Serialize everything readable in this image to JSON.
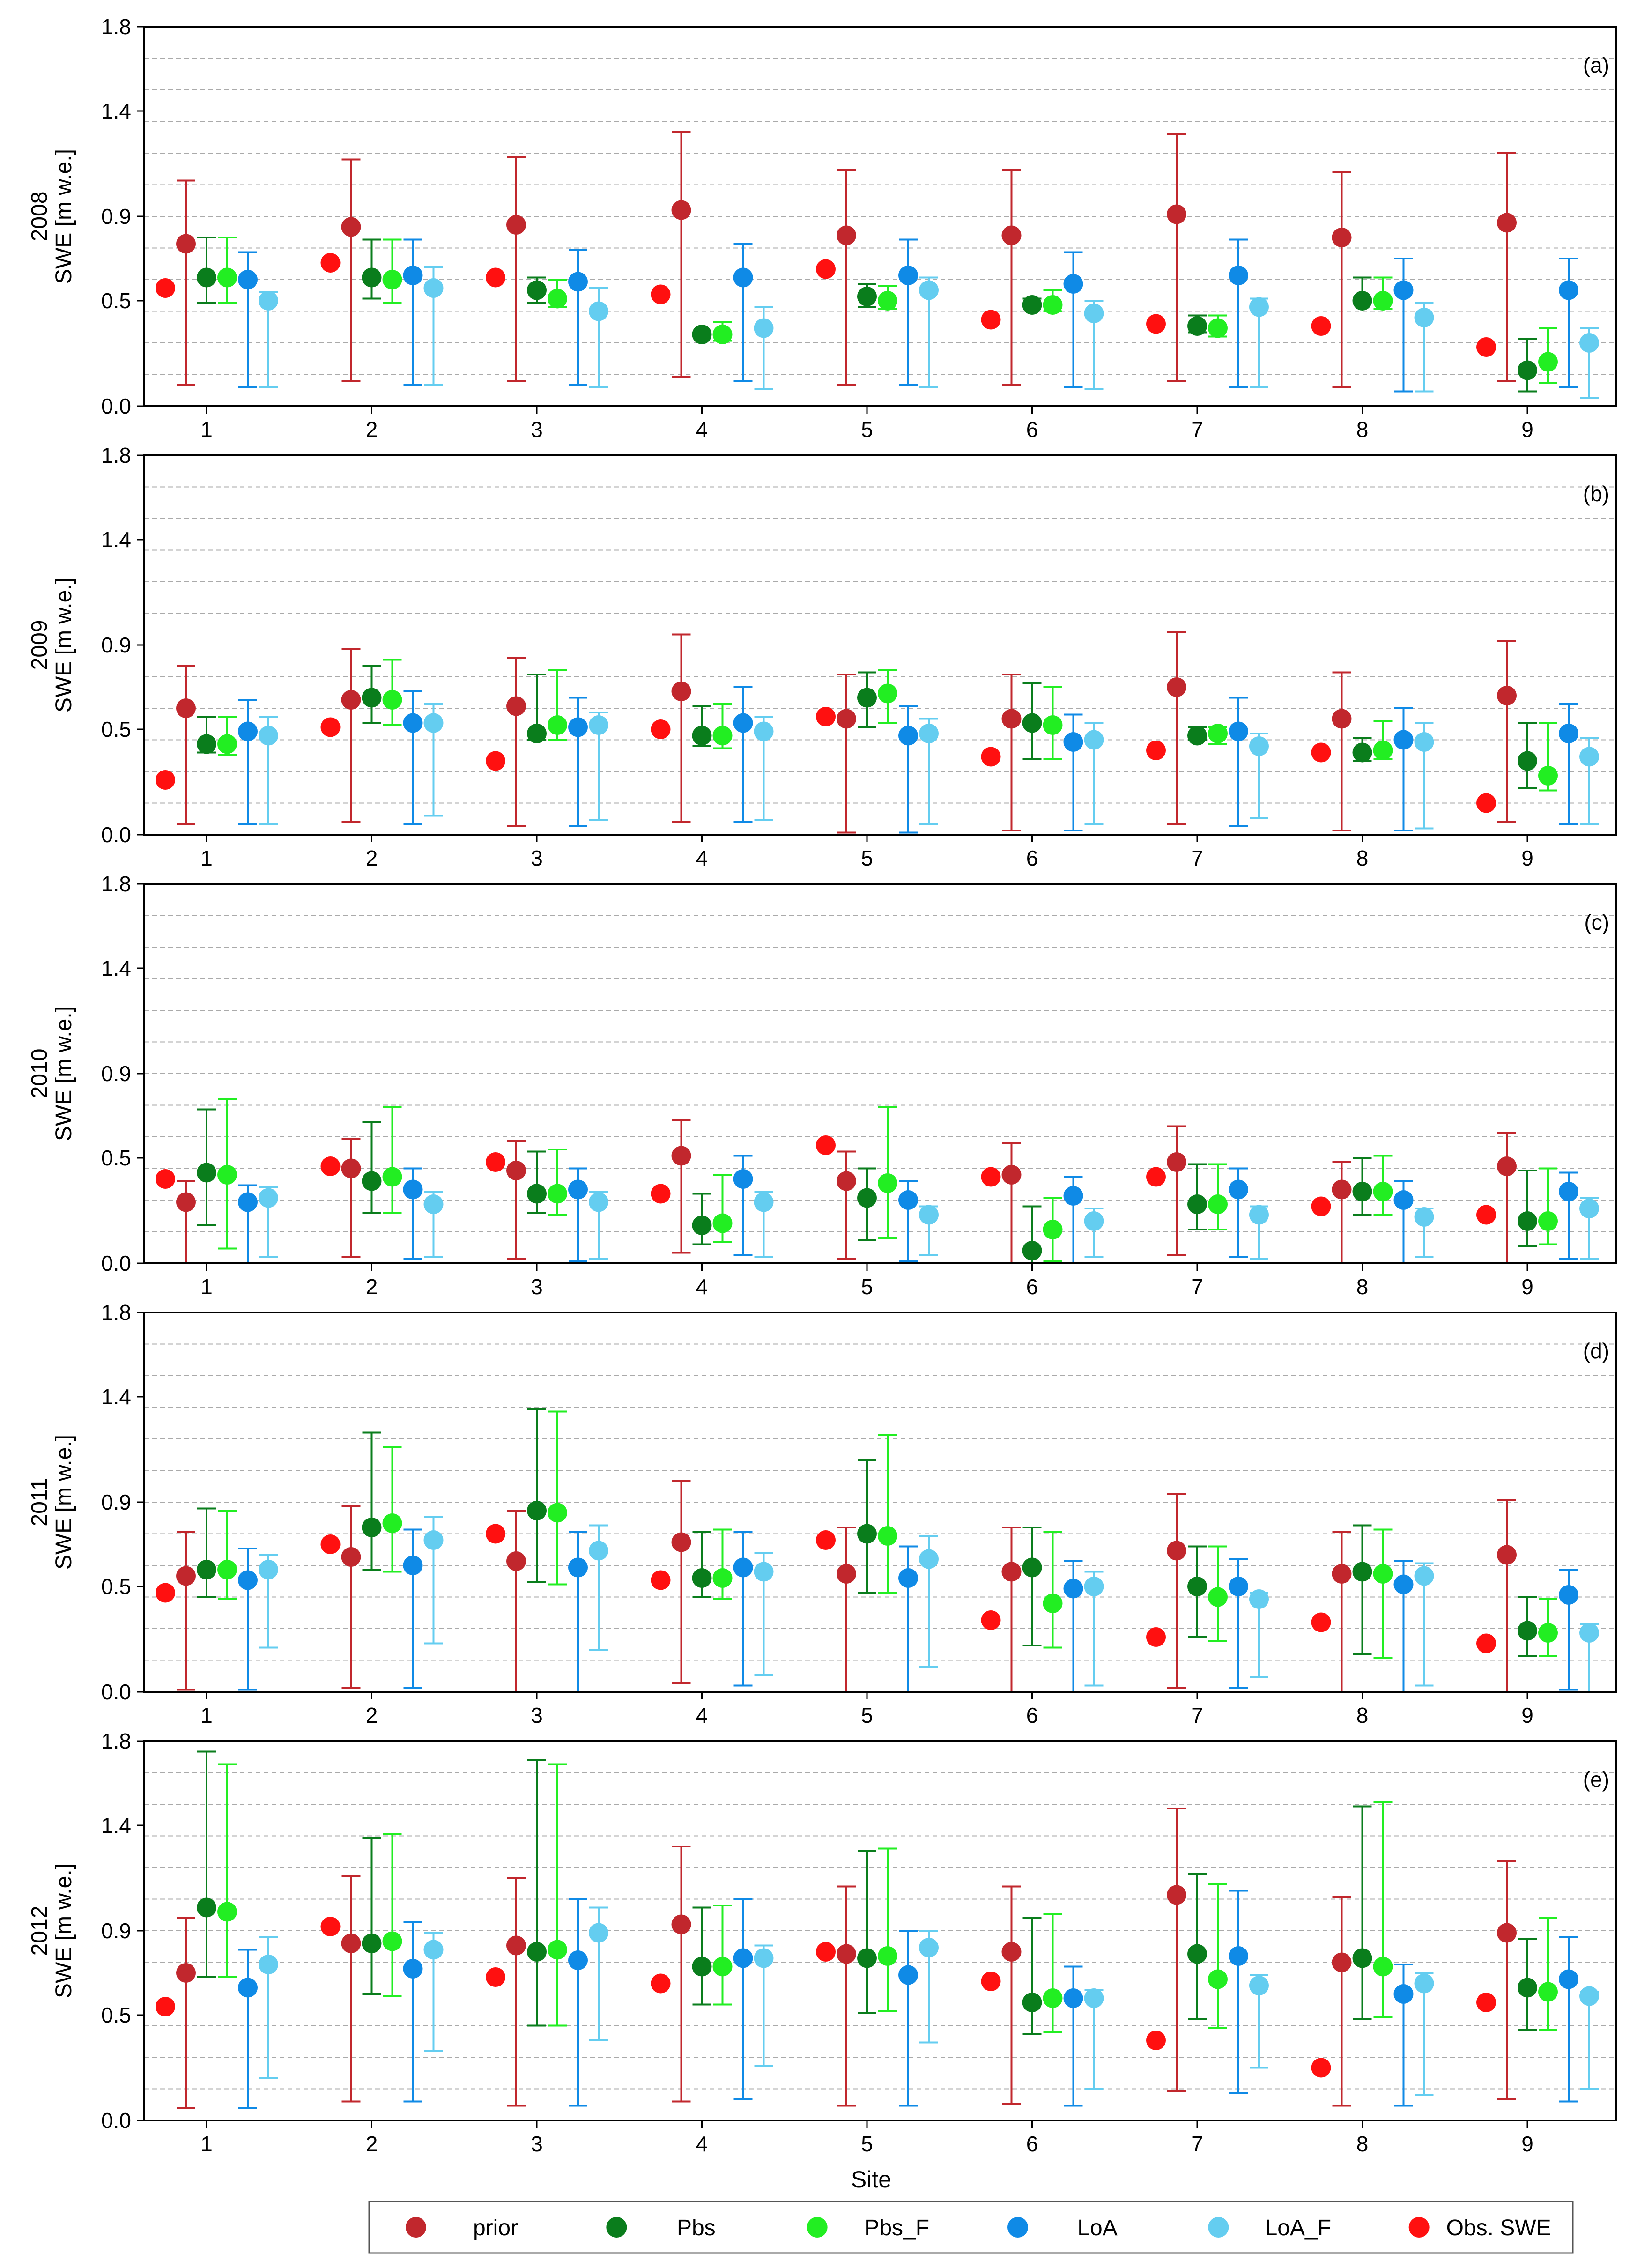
{
  "chart_data": [
    {
      "type": "scatter-errorbar",
      "panel_tag": "(a)",
      "year_label": "2008",
      "ylabel": "SWE [m w.e.]",
      "xlabel": "",
      "ylim": [
        0.0,
        1.8
      ],
      "yticks": [
        "0.0",
        "0.5",
        "0.9",
        "1.4",
        "1.8"
      ],
      "categories": [
        "1",
        "2",
        "3",
        "4",
        "5",
        "6",
        "7",
        "8",
        "9"
      ],
      "series": [
        {
          "name": "Obs. SWE",
          "values": [
            0.56,
            0.68,
            0.61,
            0.53,
            0.65,
            0.41,
            0.39,
            0.38,
            0.28
          ]
        },
        {
          "name": "prior",
          "values": [
            0.77,
            0.85,
            0.86,
            0.93,
            0.81,
            0.81,
            0.91,
            0.8,
            0.87
          ],
          "lower": [
            0.1,
            0.12,
            0.12,
            0.14,
            0.1,
            0.1,
            0.12,
            0.09,
            0.12
          ],
          "upper": [
            1.07,
            1.17,
            1.18,
            1.3,
            1.12,
            1.12,
            1.29,
            1.11,
            1.2
          ]
        },
        {
          "name": "Pbs",
          "values": [
            0.61,
            0.61,
            0.55,
            0.34,
            0.52,
            0.48,
            0.38,
            0.5,
            0.17
          ],
          "lower": [
            0.49,
            0.51,
            0.49,
            0.33,
            0.47,
            0.48,
            0.35,
            0.5,
            0.07
          ],
          "upper": [
            0.8,
            0.79,
            0.61,
            0.35,
            0.58,
            0.51,
            0.43,
            0.61,
            0.32
          ]
        },
        {
          "name": "Pbs_F",
          "values": [
            0.61,
            0.6,
            0.51,
            0.34,
            0.5,
            0.48,
            0.37,
            0.5,
            0.21
          ],
          "lower": [
            0.49,
            0.49,
            0.47,
            0.31,
            0.46,
            0.45,
            0.33,
            0.46,
            0.11
          ],
          "upper": [
            0.8,
            0.79,
            0.6,
            0.4,
            0.57,
            0.55,
            0.43,
            0.61,
            0.37
          ]
        },
        {
          "name": "LoA",
          "values": [
            0.6,
            0.62,
            0.59,
            0.61,
            0.62,
            0.58,
            0.62,
            0.55,
            0.55
          ],
          "lower": [
            0.09,
            0.1,
            0.1,
            0.12,
            0.1,
            0.09,
            0.09,
            0.07,
            0.09
          ],
          "upper": [
            0.73,
            0.79,
            0.74,
            0.77,
            0.79,
            0.73,
            0.79,
            0.7,
            0.7
          ]
        },
        {
          "name": "LoA_F",
          "values": [
            0.5,
            0.56,
            0.45,
            0.37,
            0.55,
            0.44,
            0.47,
            0.42,
            0.3
          ],
          "lower": [
            0.09,
            0.1,
            0.09,
            0.08,
            0.09,
            0.08,
            0.09,
            0.07,
            0.04
          ],
          "upper": [
            0.54,
            0.66,
            0.56,
            0.47,
            0.61,
            0.5,
            0.51,
            0.49,
            0.37
          ]
        }
      ]
    },
    {
      "type": "scatter-errorbar",
      "panel_tag": "(b)",
      "year_label": "2009",
      "ylabel": "SWE [m w.e.]",
      "xlabel": "",
      "ylim": [
        0.0,
        1.8
      ],
      "yticks": [
        "0.0",
        "0.5",
        "0.9",
        "1.4",
        "1.8"
      ],
      "categories": [
        "1",
        "2",
        "3",
        "4",
        "5",
        "6",
        "7",
        "8",
        "9"
      ],
      "series": [
        {
          "name": "Obs. SWE",
          "values": [
            0.26,
            0.51,
            0.35,
            0.5,
            0.56,
            0.37,
            0.4,
            0.39,
            0.15
          ]
        },
        {
          "name": "prior",
          "values": [
            0.6,
            0.64,
            0.61,
            0.68,
            0.55,
            0.55,
            0.7,
            0.55,
            0.66
          ],
          "lower": [
            0.05,
            0.06,
            0.04,
            0.06,
            0.01,
            0.02,
            0.05,
            0.02,
            0.06
          ],
          "upper": [
            0.8,
            0.88,
            0.84,
            0.95,
            0.76,
            0.76,
            0.96,
            0.77,
            0.92
          ]
        },
        {
          "name": "Pbs",
          "values": [
            0.43,
            0.65,
            0.48,
            0.47,
            0.65,
            0.53,
            0.47,
            0.39,
            0.35
          ],
          "lower": [
            0.39,
            0.53,
            0.45,
            0.42,
            0.51,
            0.36,
            0.45,
            0.35,
            0.22
          ],
          "upper": [
            0.56,
            0.8,
            0.76,
            0.61,
            0.77,
            0.72,
            0.51,
            0.46,
            0.53
          ]
        },
        {
          "name": "Pbs_F",
          "values": [
            0.43,
            0.64,
            0.52,
            0.47,
            0.67,
            0.52,
            0.48,
            0.4,
            0.28
          ],
          "lower": [
            0.38,
            0.52,
            0.45,
            0.41,
            0.53,
            0.36,
            0.43,
            0.36,
            0.21
          ],
          "upper": [
            0.56,
            0.83,
            0.78,
            0.62,
            0.78,
            0.7,
            0.51,
            0.54,
            0.53
          ]
        },
        {
          "name": "LoA",
          "values": [
            0.49,
            0.53,
            0.51,
            0.53,
            0.47,
            0.44,
            0.49,
            0.45,
            0.48
          ],
          "lower": [
            0.05,
            0.05,
            0.04,
            0.06,
            0.01,
            0.02,
            0.04,
            0.02,
            0.05
          ],
          "upper": [
            0.64,
            0.68,
            0.65,
            0.7,
            0.61,
            0.57,
            0.65,
            0.6,
            0.62
          ]
        },
        {
          "name": "LoA_F",
          "values": [
            0.47,
            0.53,
            0.52,
            0.49,
            0.48,
            0.45,
            0.42,
            0.44,
            0.37
          ],
          "lower": [
            0.05,
            0.09,
            0.07,
            0.07,
            0.05,
            0.05,
            0.08,
            0.03,
            0.05
          ],
          "upper": [
            0.56,
            0.62,
            0.58,
            0.56,
            0.55,
            0.53,
            0.48,
            0.53,
            0.46
          ]
        }
      ]
    },
    {
      "type": "scatter-errorbar",
      "panel_tag": "(c)",
      "year_label": "2010",
      "ylabel": "SWE [m w.e.]",
      "xlabel": "",
      "ylim": [
        0.0,
        1.8
      ],
      "yticks": [
        "0.0",
        "0.5",
        "0.9",
        "1.4",
        "1.8"
      ],
      "categories": [
        "1",
        "2",
        "3",
        "4",
        "5",
        "6",
        "7",
        "8",
        "9"
      ],
      "series": [
        {
          "name": "Obs. SWE",
          "values": [
            0.4,
            0.46,
            0.48,
            0.33,
            0.56,
            0.41,
            0.41,
            0.27,
            0.23
          ]
        },
        {
          "name": "prior",
          "values": [
            0.29,
            0.45,
            0.44,
            0.51,
            0.39,
            0.42,
            0.48,
            0.35,
            0.46
          ],
          "lower": [
            0.0,
            0.03,
            0.02,
            0.05,
            0.02,
            0.0,
            0.04,
            0.0,
            0.0
          ],
          "upper": [
            0.39,
            0.59,
            0.58,
            0.68,
            0.53,
            0.57,
            0.65,
            0.48,
            0.62
          ]
        },
        {
          "name": "Pbs",
          "values": [
            0.43,
            0.39,
            0.33,
            0.18,
            0.31,
            0.06,
            0.28,
            0.34,
            0.2
          ],
          "lower": [
            0.18,
            0.24,
            0.24,
            0.09,
            0.11,
            0.0,
            0.16,
            0.23,
            0.08
          ],
          "upper": [
            0.73,
            0.67,
            0.53,
            0.33,
            0.45,
            0.27,
            0.47,
            0.5,
            0.44
          ]
        },
        {
          "name": "Pbs_F",
          "values": [
            0.42,
            0.41,
            0.33,
            0.19,
            0.38,
            0.16,
            0.28,
            0.34,
            0.2
          ],
          "lower": [
            0.07,
            0.24,
            0.23,
            0.1,
            0.12,
            0.01,
            0.16,
            0.23,
            0.09
          ],
          "upper": [
            0.78,
            0.74,
            0.54,
            0.42,
            0.74,
            0.31,
            0.47,
            0.51,
            0.45
          ]
        },
        {
          "name": "LoA",
          "values": [
            0.29,
            0.35,
            0.35,
            0.4,
            0.3,
            0.32,
            0.35,
            0.3,
            0.34
          ],
          "lower": [
            0.0,
            0.02,
            0.01,
            0.04,
            0.01,
            0.0,
            0.03,
            0.0,
            0.02
          ],
          "upper": [
            0.37,
            0.45,
            0.45,
            0.51,
            0.39,
            0.41,
            0.45,
            0.39,
            0.43
          ]
        },
        {
          "name": "LoA_F",
          "values": [
            0.31,
            0.28,
            0.29,
            0.29,
            0.23,
            0.2,
            0.23,
            0.22,
            0.26
          ],
          "lower": [
            0.03,
            0.03,
            0.02,
            0.03,
            0.04,
            0.03,
            0.02,
            0.03,
            0.02
          ],
          "upper": [
            0.36,
            0.34,
            0.34,
            0.34,
            0.27,
            0.26,
            0.27,
            0.26,
            0.31
          ]
        }
      ]
    },
    {
      "type": "scatter-errorbar",
      "panel_tag": "(d)",
      "year_label": "2011",
      "ylabel": "SWE [m w.e.]",
      "xlabel": "",
      "ylim": [
        0.0,
        1.8
      ],
      "yticks": [
        "0.0",
        "0.5",
        "0.9",
        "1.4",
        "1.8"
      ],
      "categories": [
        "1",
        "2",
        "3",
        "4",
        "5",
        "6",
        "7",
        "8",
        "9"
      ],
      "series": [
        {
          "name": "Obs. SWE",
          "values": [
            0.47,
            0.7,
            0.75,
            0.53,
            0.72,
            0.34,
            0.26,
            0.33,
            0.23
          ]
        },
        {
          "name": "prior",
          "values": [
            0.55,
            0.64,
            0.62,
            0.71,
            0.56,
            0.57,
            0.67,
            0.56,
            0.65
          ],
          "lower": [
            0.01,
            0.02,
            0.0,
            0.04,
            0.0,
            0.0,
            0.02,
            0.0,
            0.0
          ],
          "upper": [
            0.76,
            0.88,
            0.86,
            1.0,
            0.78,
            0.78,
            0.94,
            0.76,
            0.91
          ]
        },
        {
          "name": "Pbs",
          "values": [
            0.58,
            0.78,
            0.86,
            0.54,
            0.75,
            0.59,
            0.5,
            0.57,
            0.29
          ],
          "lower": [
            0.45,
            0.58,
            0.52,
            0.45,
            0.47,
            0.22,
            0.26,
            0.18,
            0.17
          ],
          "upper": [
            0.87,
            1.23,
            1.34,
            0.76,
            1.1,
            0.78,
            0.69,
            0.79,
            0.45
          ]
        },
        {
          "name": "Pbs_F",
          "values": [
            0.58,
            0.8,
            0.85,
            0.54,
            0.74,
            0.42,
            0.45,
            0.56,
            0.28
          ],
          "lower": [
            0.44,
            0.57,
            0.51,
            0.44,
            0.47,
            0.21,
            0.24,
            0.16,
            0.17
          ],
          "upper": [
            0.86,
            1.16,
            1.33,
            0.77,
            1.22,
            0.76,
            0.69,
            0.77,
            0.44
          ]
        },
        {
          "name": "LoA",
          "values": [
            0.53,
            0.6,
            0.59,
            0.59,
            0.54,
            0.49,
            0.5,
            0.51,
            0.46
          ],
          "lower": [
            0.01,
            0.02,
            0.0,
            0.03,
            0.0,
            0.0,
            0.02,
            0.0,
            0.01
          ],
          "upper": [
            0.68,
            0.77,
            0.76,
            0.76,
            0.69,
            0.62,
            0.63,
            0.62,
            0.58
          ]
        },
        {
          "name": "LoA_F",
          "values": [
            0.58,
            0.72,
            0.67,
            0.57,
            0.63,
            0.5,
            0.44,
            0.55,
            0.28
          ],
          "lower": [
            0.21,
            0.23,
            0.2,
            0.08,
            0.12,
            0.03,
            0.07,
            0.03,
            0.0
          ],
          "upper": [
            0.65,
            0.83,
            0.79,
            0.66,
            0.74,
            0.57,
            0.47,
            0.61,
            0.32
          ]
        }
      ]
    },
    {
      "type": "scatter-errorbar",
      "panel_tag": "(e)",
      "year_label": "2012",
      "ylabel": "SWE [m w.e.]",
      "xlabel": "Site",
      "ylim": [
        0.0,
        1.8
      ],
      "yticks": [
        "0.0",
        "0.5",
        "0.9",
        "1.4",
        "1.8"
      ],
      "categories": [
        "1",
        "2",
        "3",
        "4",
        "5",
        "6",
        "7",
        "8",
        "9"
      ],
      "series": [
        {
          "name": "Obs. SWE",
          "values": [
            0.54,
            0.92,
            0.68,
            0.65,
            0.8,
            0.66,
            0.38,
            0.25,
            0.56
          ]
        },
        {
          "name": "prior",
          "values": [
            0.7,
            0.84,
            0.83,
            0.93,
            0.79,
            0.8,
            1.07,
            0.75,
            0.89
          ],
          "lower": [
            0.06,
            0.09,
            0.07,
            0.09,
            0.07,
            0.08,
            0.14,
            0.07,
            0.1
          ],
          "upper": [
            0.96,
            1.16,
            1.15,
            1.3,
            1.11,
            1.11,
            1.48,
            1.06,
            1.23
          ]
        },
        {
          "name": "Pbs",
          "values": [
            1.01,
            0.84,
            0.8,
            0.73,
            0.77,
            0.56,
            0.79,
            0.77,
            0.63
          ],
          "lower": [
            0.68,
            0.6,
            0.45,
            0.55,
            0.51,
            0.41,
            0.48,
            0.48,
            0.43
          ],
          "upper": [
            1.75,
            1.34,
            1.71,
            1.01,
            1.28,
            0.96,
            1.17,
            1.49,
            0.86
          ]
        },
        {
          "name": "Pbs_F",
          "values": [
            0.99,
            0.85,
            0.81,
            0.73,
            0.78,
            0.58,
            0.67,
            0.73,
            0.61
          ],
          "lower": [
            0.68,
            0.59,
            0.45,
            0.55,
            0.52,
            0.42,
            0.44,
            0.49,
            0.43
          ],
          "upper": [
            1.69,
            1.36,
            1.69,
            1.02,
            1.29,
            0.98,
            1.12,
            1.51,
            0.96
          ]
        },
        {
          "name": "LoA",
          "values": [
            0.63,
            0.72,
            0.76,
            0.77,
            0.69,
            0.58,
            0.78,
            0.6,
            0.67
          ],
          "lower": [
            0.06,
            0.09,
            0.07,
            0.1,
            0.07,
            0.07,
            0.13,
            0.07,
            0.09
          ],
          "upper": [
            0.81,
            0.94,
            1.05,
            1.05,
            0.9,
            0.73,
            1.09,
            0.74,
            0.87
          ]
        },
        {
          "name": "LoA_F",
          "values": [
            0.74,
            0.81,
            0.89,
            0.77,
            0.82,
            0.58,
            0.64,
            0.65,
            0.59
          ],
          "lower": [
            0.2,
            0.33,
            0.38,
            0.26,
            0.37,
            0.15,
            0.25,
            0.12,
            0.15
          ],
          "upper": [
            0.87,
            0.89,
            1.01,
            0.83,
            0.9,
            0.62,
            0.69,
            0.7,
            0.61
          ]
        }
      ]
    }
  ],
  "legend": {
    "entries": [
      {
        "name": "prior",
        "color": "#c1272d"
      },
      {
        "name": "Pbs",
        "color": "#0a7d1c"
      },
      {
        "name": "Pbs_F",
        "color": "#22ee22"
      },
      {
        "name": "LoA",
        "color": "#0f8ae6"
      },
      {
        "name": "LoA_F",
        "color": "#64cdf0"
      },
      {
        "name": "Obs. SWE",
        "color": "#ff1010"
      }
    ]
  },
  "colors": {
    "prior": "#c1272d",
    "Pbs": "#0a7d1c",
    "Pbs_F": "#22ee22",
    "LoA": "#0f8ae6",
    "LoA_F": "#64cdf0",
    "Obs. SWE": "#ff1010",
    "grid": "#aaaaaa"
  }
}
